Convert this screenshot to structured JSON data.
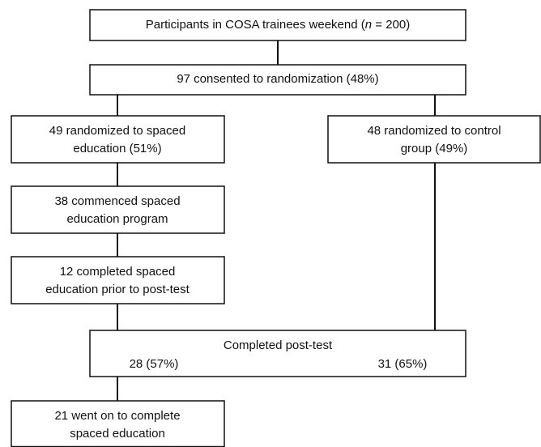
{
  "nodes": [
    {
      "label_parts": [
        "Participants in COSA trainees weekend (",
        "n",
        " = 200)"
      ]
    },
    {
      "lines": [
        "97 consented to randomization (48%)"
      ]
    },
    {
      "lines": [
        "49 randomized to spaced",
        "education (51%)"
      ]
    },
    {
      "lines": [
        "48 randomized to control",
        "group (49%)"
      ]
    },
    {
      "lines": [
        "38 commenced spaced",
        "education program"
      ]
    },
    {
      "lines": [
        "12 completed spaced",
        "education prior to post-test"
      ]
    },
    {
      "lines": [
        "Completed post-test"
      ],
      "left": "28 (57%)",
      "right": "31 (65%)"
    },
    {
      "lines": [
        "21 went on to complete",
        "spaced education"
      ]
    }
  ]
}
